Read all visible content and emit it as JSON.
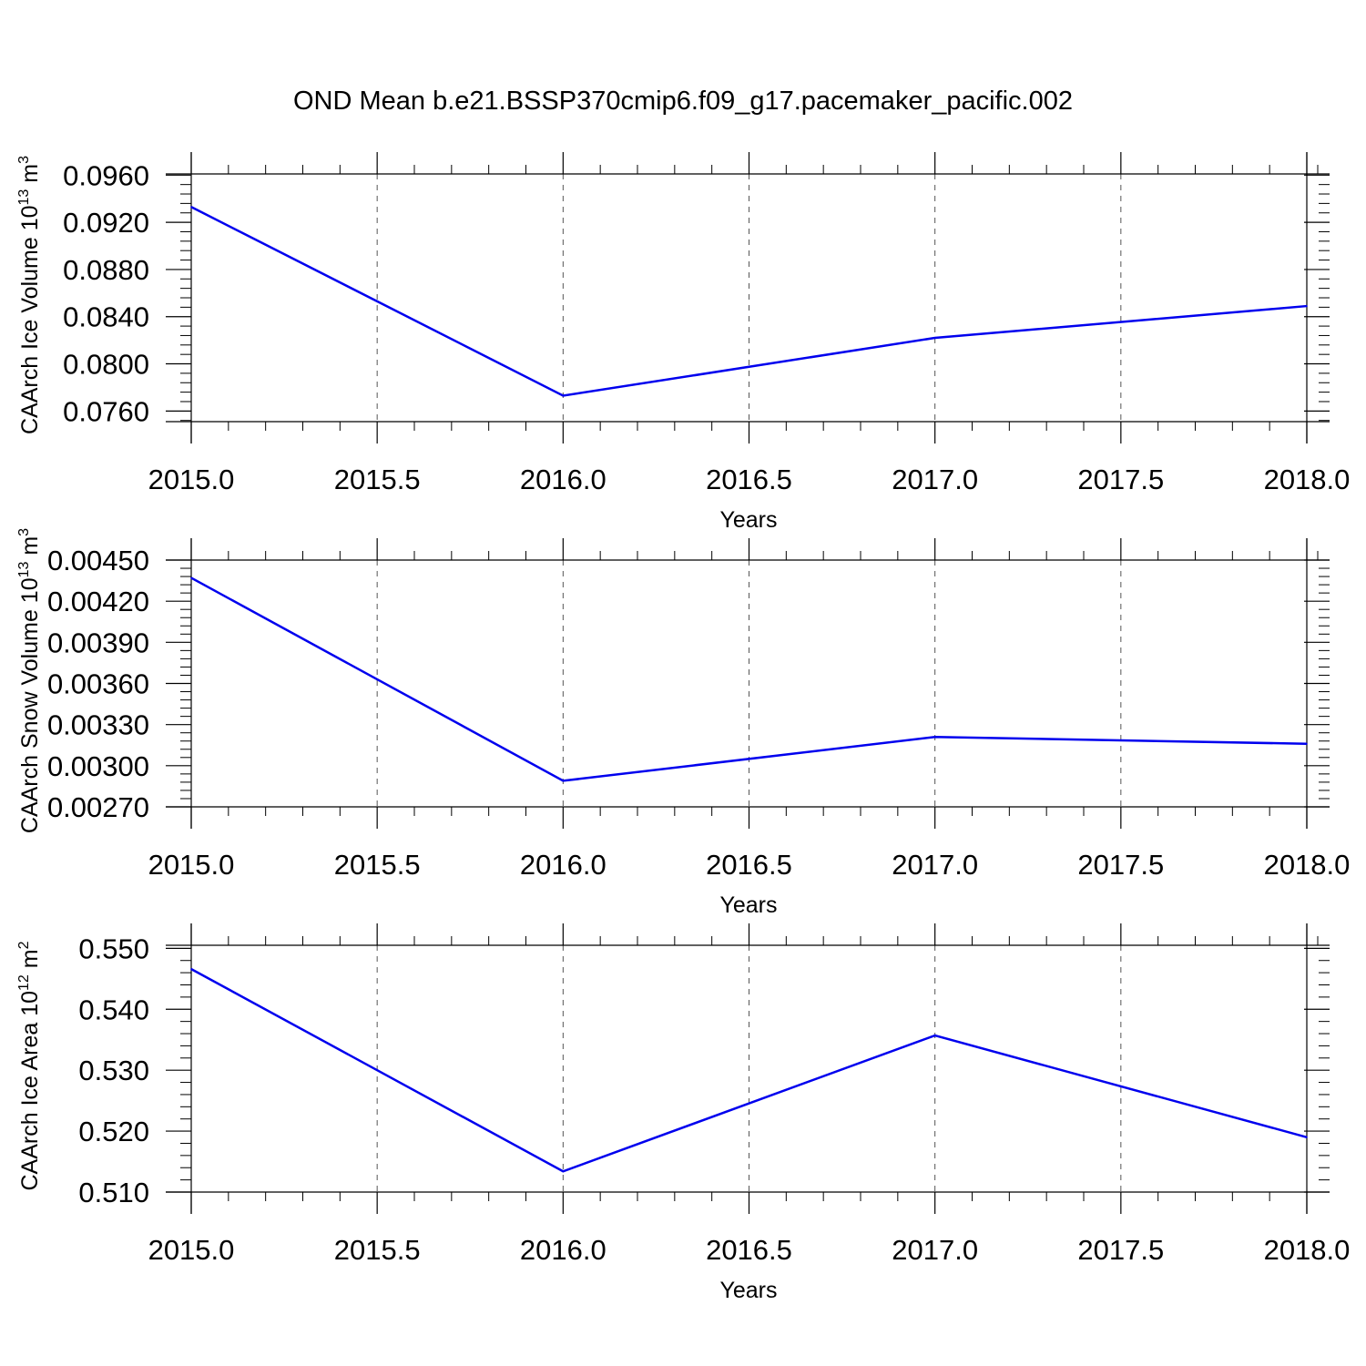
{
  "title": "OND Mean b.e21.BSSP370cmip6.f09_g17.pacemaker_pacific.002",
  "colors": {
    "line": "#0000ee",
    "axis": "#000000",
    "grid": "#555555"
  },
  "chart_data": [
    {
      "type": "line",
      "ylabel": "CAArch Ice Volume 10",
      "ylabel_sup": "13",
      "ylabel_unit": "m",
      "ylabel_unit_sup": "3",
      "xlabel": "Years",
      "x": [
        2015,
        2016,
        2017,
        2018
      ],
      "values": [
        0.0933,
        0.0773,
        0.0822,
        0.0849
      ],
      "xlim": [
        2015.0,
        2018.0
      ],
      "ylim": [
        0.0751,
        0.0961
      ],
      "xticks": [
        "2015.0",
        "2015.5",
        "2016.0",
        "2016.5",
        "2017.0",
        "2017.5",
        "2018.0"
      ],
      "yticks": [
        "0.0760",
        "0.0800",
        "0.0840",
        "0.0880",
        "0.0920",
        "0.0960"
      ],
      "yticks_values": [
        0.076,
        0.08,
        0.084,
        0.088,
        0.092,
        0.096
      ],
      "grid": "vertical dashed"
    },
    {
      "type": "line",
      "ylabel": "CAArch Snow Volume 10",
      "ylabel_sup": "13",
      "ylabel_unit": "m",
      "ylabel_unit_sup": "3",
      "xlabel": "Years",
      "x": [
        2015,
        2016,
        2017,
        2018
      ],
      "values": [
        0.00437,
        0.00289,
        0.00321,
        0.00316
      ],
      "xlim": [
        2015.0,
        2018.0
      ],
      "ylim": [
        0.0027,
        0.0045
      ],
      "xticks": [
        "2015.0",
        "2015.5",
        "2016.0",
        "2016.5",
        "2017.0",
        "2017.5",
        "2018.0"
      ],
      "yticks": [
        "0.00270",
        "0.00300",
        "0.00330",
        "0.00360",
        "0.00390",
        "0.00420",
        "0.00450"
      ],
      "yticks_values": [
        0.0027,
        0.003,
        0.0033,
        0.0036,
        0.0039,
        0.0042,
        0.0045
      ],
      "grid": "vertical dashed"
    },
    {
      "type": "line",
      "ylabel": "CAArch Ice Area 10",
      "ylabel_sup": "12",
      "ylabel_unit": "m",
      "ylabel_unit_sup": "2",
      "xlabel": "Years",
      "x": [
        2015,
        2016,
        2017,
        2018
      ],
      "values": [
        0.5466,
        0.5134,
        0.5357,
        0.519
      ],
      "xlim": [
        2015.0,
        2018.0
      ],
      "ylim": [
        0.51,
        0.5505
      ],
      "xticks": [
        "2015.0",
        "2015.5",
        "2016.0",
        "2016.5",
        "2017.0",
        "2017.5",
        "2018.0"
      ],
      "yticks": [
        "0.510",
        "0.520",
        "0.530",
        "0.540",
        "0.550"
      ],
      "yticks_values": [
        0.51,
        0.52,
        0.53,
        0.54,
        0.55
      ],
      "grid": "vertical dashed"
    }
  ]
}
